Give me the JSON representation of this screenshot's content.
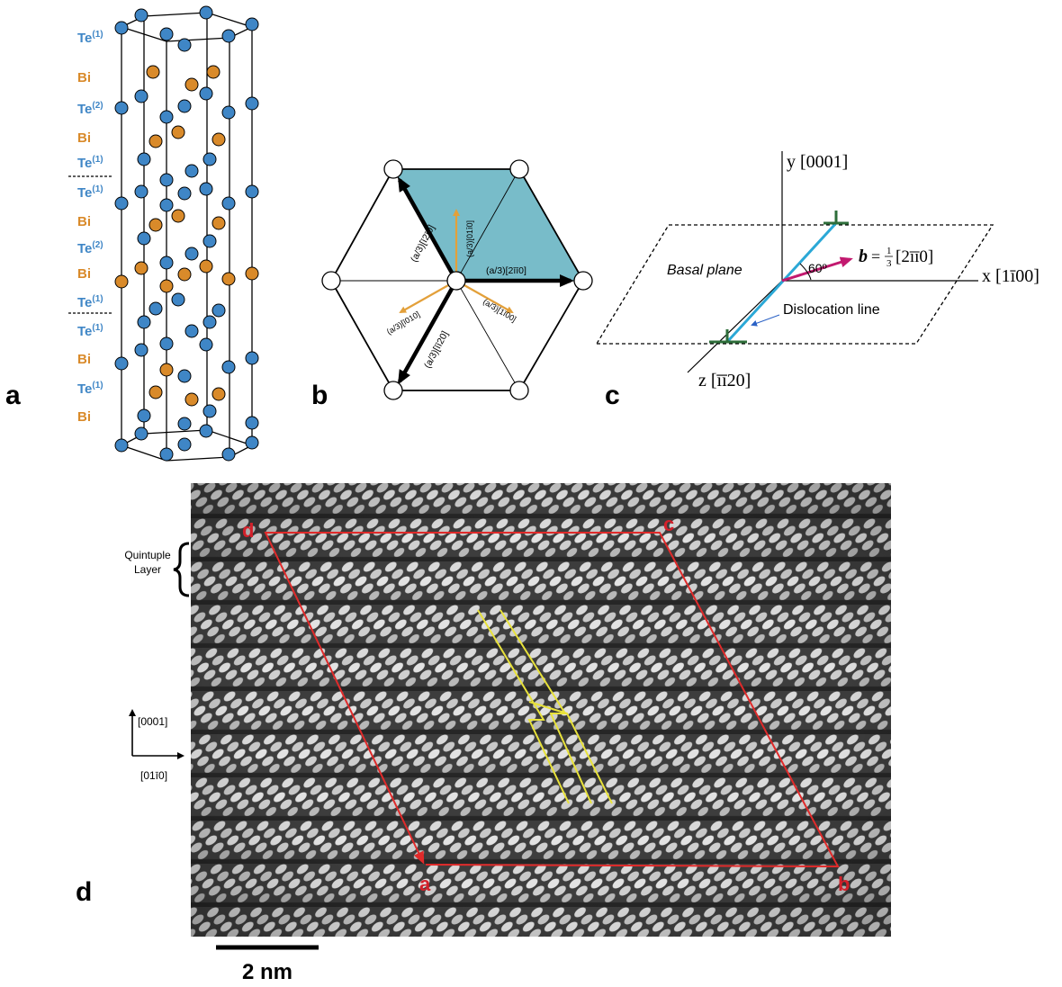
{
  "panels": {
    "a": {
      "letter": "a",
      "layers": [
        {
          "el": "Te",
          "sup": "(1)",
          "kind": "te"
        },
        {
          "el": "Bi",
          "sup": "",
          "kind": "bi"
        },
        {
          "el": "Te",
          "sup": "(2)",
          "kind": "te"
        },
        {
          "el": "Bi",
          "sup": "",
          "kind": "bi"
        },
        {
          "el": "Te",
          "sup": "(1)",
          "kind": "te"
        },
        {
          "el": "Te",
          "sup": "(1)",
          "kind": "te"
        },
        {
          "el": "Bi",
          "sup": "",
          "kind": "bi"
        },
        {
          "el": "Te",
          "sup": "(2)",
          "kind": "te"
        },
        {
          "el": "Bi",
          "sup": "",
          "kind": "bi"
        },
        {
          "el": "Te",
          "sup": "(1)",
          "kind": "te"
        },
        {
          "el": "Te",
          "sup": "(1)",
          "kind": "te"
        },
        {
          "el": "Bi",
          "sup": "",
          "kind": "bi"
        },
        {
          "el": "Te",
          "sup": "(1)",
          "kind": "te"
        },
        {
          "el": "Bi",
          "sup": "",
          "kind": "bi"
        }
      ],
      "colors": {
        "te": "#3f86c6",
        "bi": "#d98a2a"
      }
    },
    "b": {
      "letter": "b",
      "labels": {
        "right": "(a/3)[2īī0]",
        "upper_left": "(a/3)[ī2ī0]",
        "lower_left": "(a/3)[īī20]",
        "up": "(a/3)[01ī0]",
        "left_orange": "(a/3)[ī010]",
        "right_orange": "(a/3)[1ī00]"
      },
      "colors": {
        "fill": "#78bcc9",
        "orange": "#e3a03a"
      }
    },
    "c": {
      "letter": "c",
      "y_axis": "y [0001]",
      "x_axis": "x [1ī00]",
      "z_axis": "z [īī20]",
      "plane_label": "Basal plane",
      "angle": "60º",
      "burgers_prefix": "b",
      "burgers_eq": "=",
      "burgers_frac_num": "1",
      "burgers_frac_den": "3",
      "burgers_vec": "[2īī0]",
      "dislocation_label": "Dislocation line",
      "colors": {
        "line": "#2ba8d6",
        "burgers": "#c2196f",
        "symbol": "#2e6e3a"
      }
    },
    "d": {
      "letter": "d",
      "corners": {
        "a": "a",
        "b": "b",
        "c": "c",
        "d": "d"
      },
      "bracket_label_line1": "Quintuple",
      "bracket_label_line2": "Layer",
      "axis_up": "[0001]",
      "axis_right": "[01ī0]",
      "scale_bar": "2 nm",
      "colors": {
        "circuit": "#e02a2a",
        "trace": "#e8e23a"
      }
    }
  }
}
